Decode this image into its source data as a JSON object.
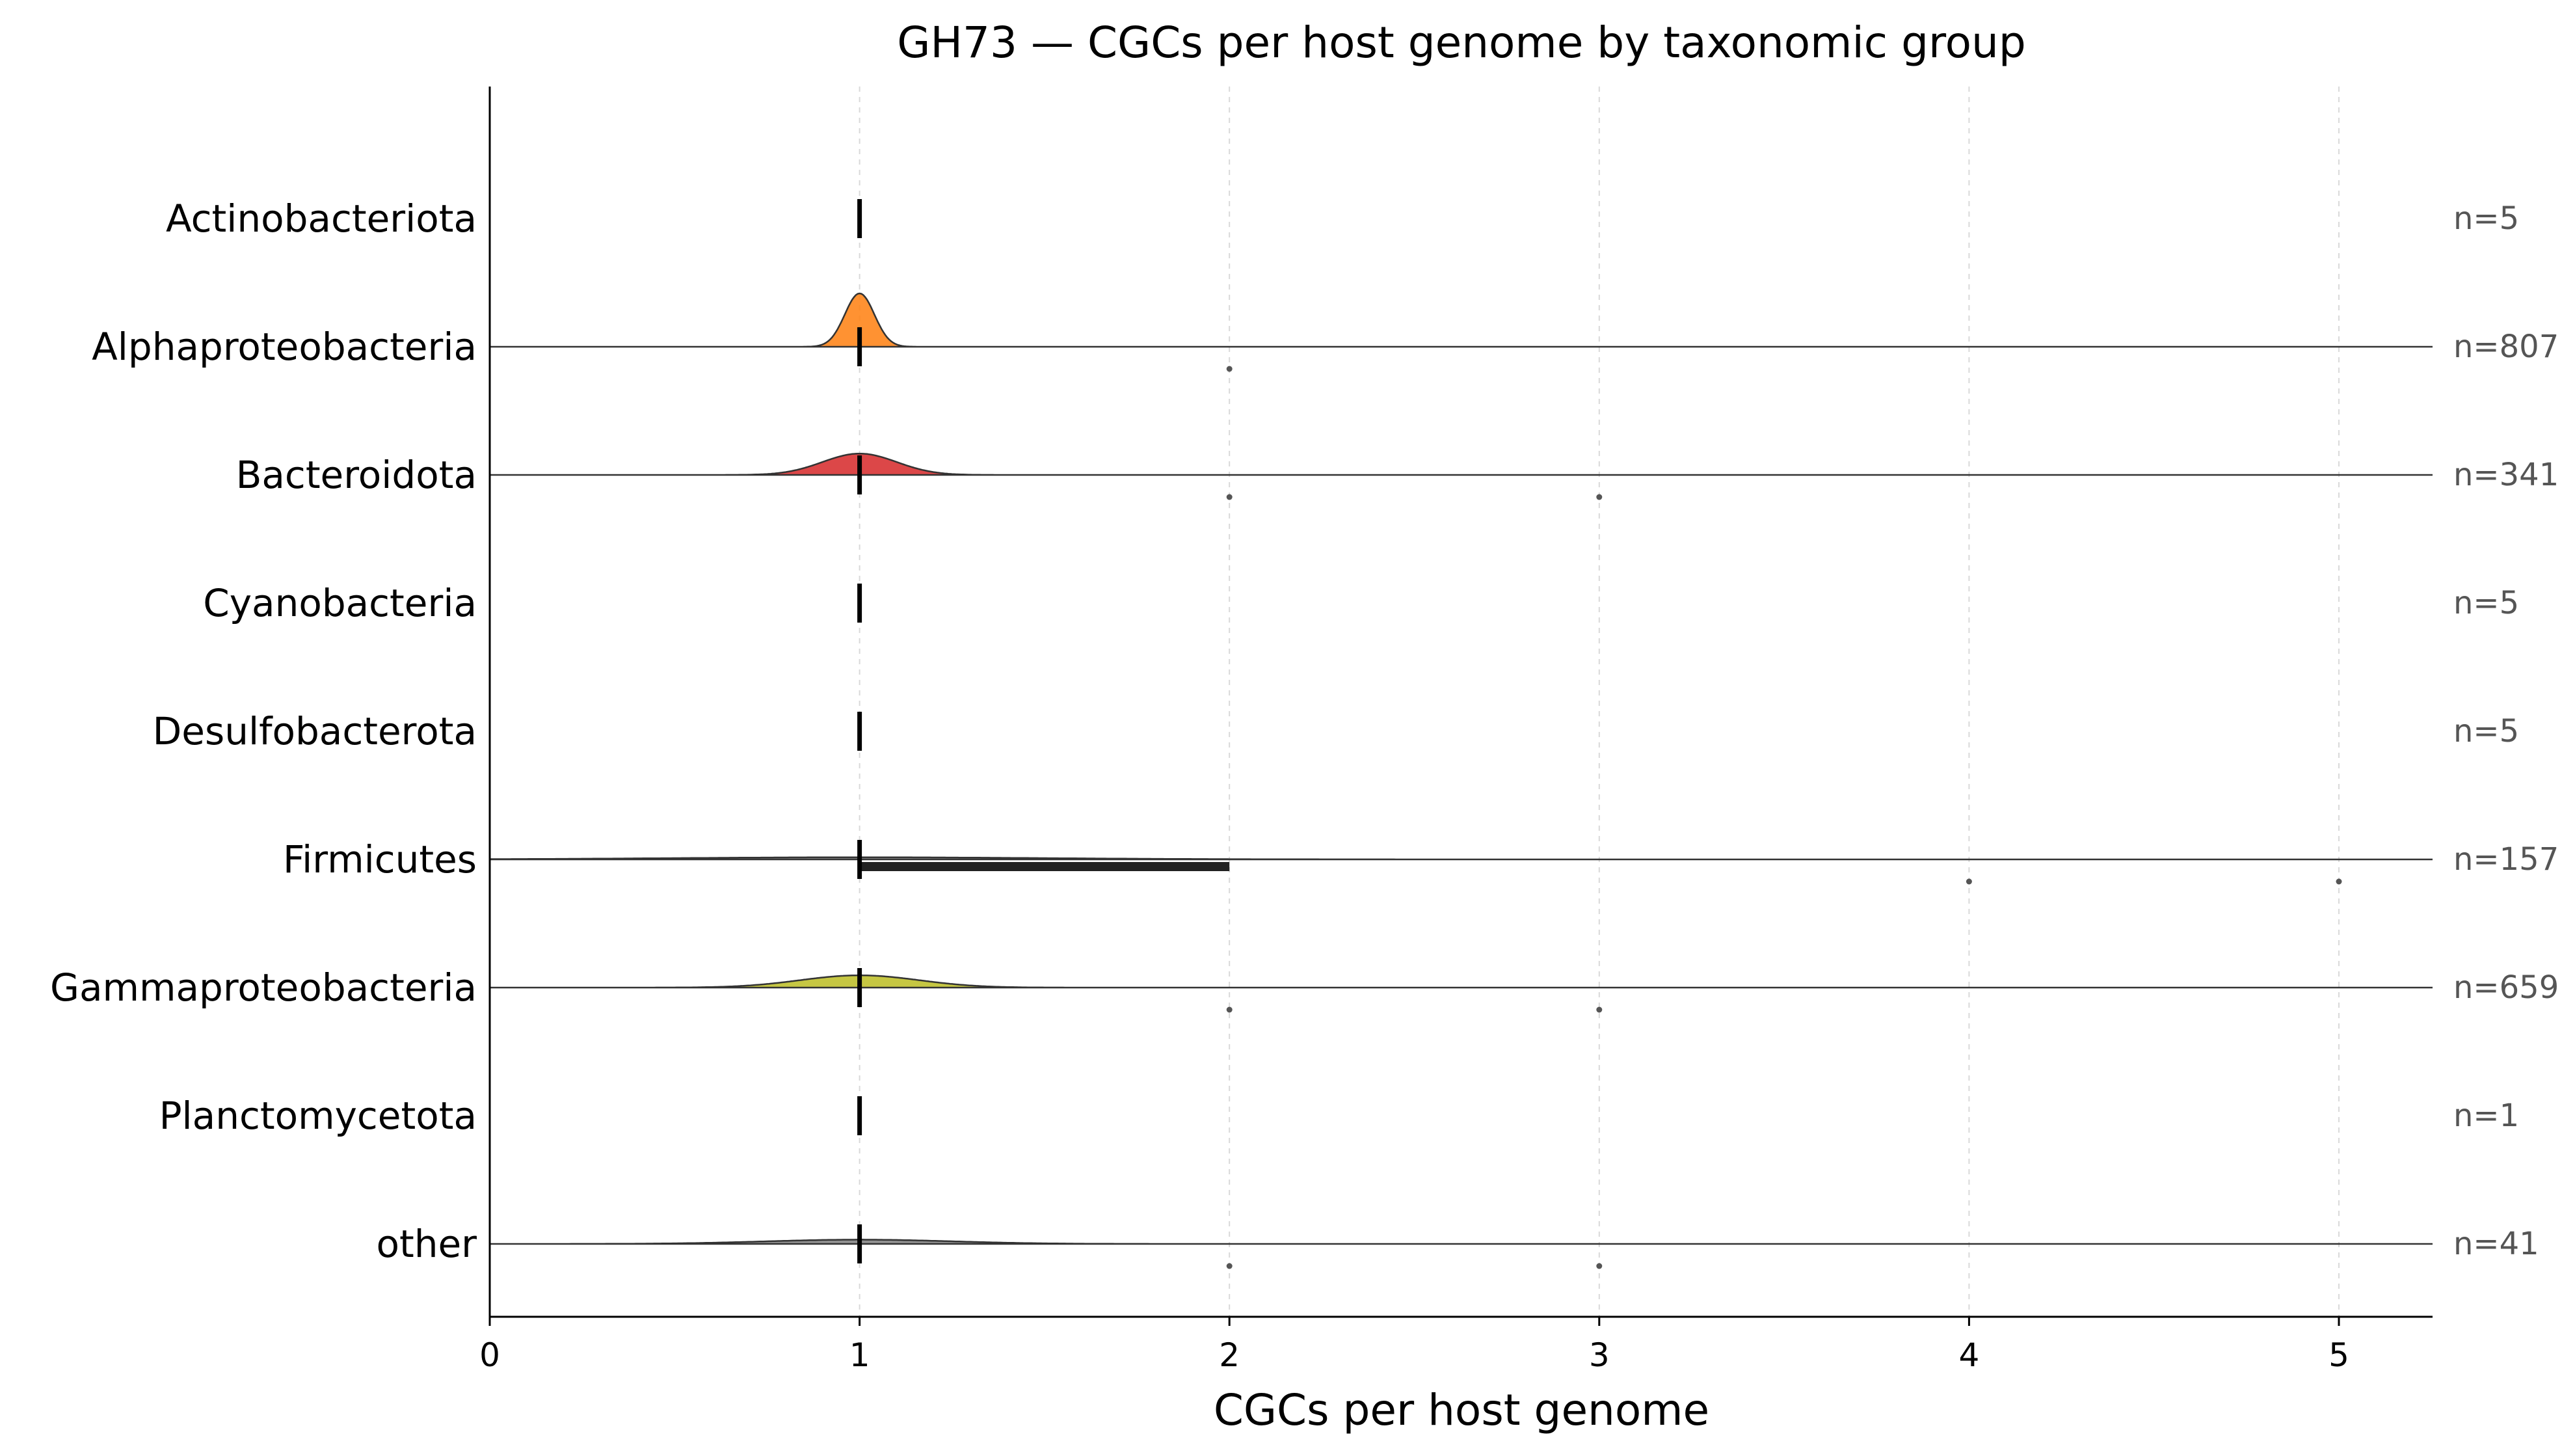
{
  "chart_data": {
    "type": "ridgeline",
    "title": "GH73 — CGCs per host genome by taxonomic group",
    "xlabel": "CGCs per host genome",
    "ylabel": "",
    "xlim": [
      0,
      5.25
    ],
    "x_ticks": [
      0,
      1,
      2,
      3,
      4,
      5
    ],
    "grid": "vertical dashed",
    "categories": [
      "Actinobacteriota",
      "Alphaproteobacteria",
      "Bacteroidota",
      "Cyanobacteria",
      "Desulfobacterota",
      "Firmicutes",
      "Gammaproteobacteria",
      "Planctomycetota",
      "other"
    ],
    "series": [
      {
        "category": "Actinobacteriota",
        "n_label": "n=5",
        "color": null,
        "density_peak": 0,
        "density_sd": 0,
        "median": 1,
        "iqr": [
          1,
          1
        ],
        "outliers": []
      },
      {
        "category": "Alphaproteobacteria",
        "n_label": "n=807",
        "color": "#ff7f0e",
        "density_peak": 1.0,
        "density_sd": 0.04,
        "median": 1,
        "iqr": [
          1,
          1
        ],
        "outliers": [
          2
        ]
      },
      {
        "category": "Bacteroidota",
        "n_label": "n=341",
        "color": "#d62728",
        "density_peak": 0.4,
        "density_sd": 0.1,
        "median": 1,
        "iqr": [
          1,
          1
        ],
        "outliers": [
          2,
          3
        ]
      },
      {
        "category": "Cyanobacteria",
        "n_label": "n=5",
        "color": null,
        "density_peak": 0,
        "density_sd": 0,
        "median": 1,
        "iqr": [
          1,
          1
        ],
        "outliers": []
      },
      {
        "category": "Desulfobacterota",
        "n_label": "n=5",
        "color": null,
        "density_peak": 0,
        "density_sd": 0,
        "median": 1,
        "iqr": [
          1,
          1
        ],
        "outliers": []
      },
      {
        "category": "Firmicutes",
        "n_label": "n=157",
        "color": "#7f7f7f",
        "density_peak": 0.04,
        "density_sd": 0.5,
        "median": 1,
        "iqr": [
          1,
          2
        ],
        "outliers": [
          4,
          5
        ]
      },
      {
        "category": "Gammaproteobacteria",
        "n_label": "n=659",
        "color": "#bcbd22",
        "density_peak": 0.23,
        "density_sd": 0.16,
        "median": 1,
        "iqr": [
          1,
          1
        ],
        "outliers": [
          2,
          3
        ]
      },
      {
        "category": "Planctomycetota",
        "n_label": "n=1",
        "color": null,
        "density_peak": 0,
        "density_sd": 0,
        "median": 1,
        "iqr": [
          1,
          1
        ],
        "outliers": []
      },
      {
        "category": "other",
        "n_label": "n=41",
        "color": "#7f7f7f",
        "density_peak": 0.08,
        "density_sd": 0.25,
        "median": 1,
        "iqr": [
          1,
          1
        ],
        "outliers": [
          2,
          3
        ]
      }
    ]
  }
}
